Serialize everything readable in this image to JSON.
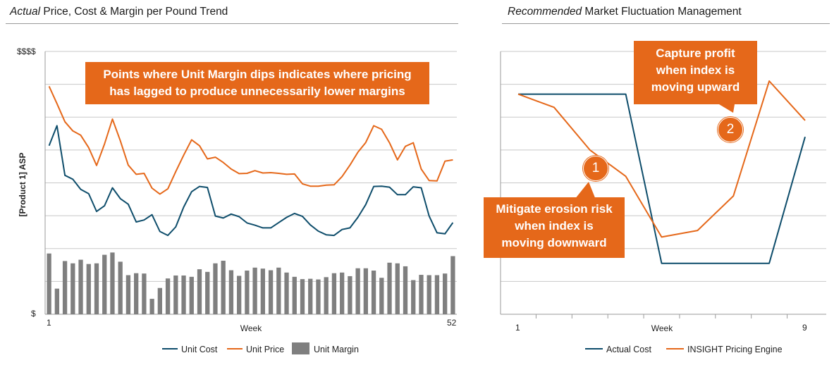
{
  "left_title": {
    "italic": "Actual",
    "rest": " Price, Cost & Margin per Pound Trend"
  },
  "right_title": {
    "italic": "Recommended",
    "rest": " Market Fluctuation Management"
  },
  "left_callout": {
    "line1": "Points where Unit Margin dips indicates where pricing",
    "line2": "has lagged to produce unnecessarily lower margins"
  },
  "right_callout_up": {
    "line1": "Capture profit",
    "line2": "when index is",
    "line3": "moving upward",
    "badge": "2"
  },
  "right_callout_down": {
    "line1": "Mitigate erosion risk",
    "line2": "when index is",
    "line3": "moving downward",
    "badge": "1"
  },
  "colors": {
    "cost": "#0e4d6b",
    "price": "#e5681a",
    "margin": "#7f7f7f",
    "grid": "#c8c8c8"
  },
  "chart_data": [
    {
      "type": "line",
      "title": "Actual Price, Cost & Margin per Pound Trend",
      "xlabel": "Week",
      "ylabel": "[Product 1] ASP",
      "x_tick_labels": [
        "1",
        "52"
      ],
      "y_tick_labels": [
        "$",
        "$$$$"
      ],
      "grid": true,
      "legend_position": "bottom",
      "series": [
        {
          "name": "Unit Cost",
          "kind": "line",
          "color": "#0e4d6b",
          "values": [
            5.13,
            5.74,
            4.23,
            4.11,
            3.8,
            3.67,
            3.13,
            3.3,
            3.85,
            3.52,
            3.35,
            2.81,
            2.87,
            3.03,
            2.52,
            2.4,
            2.66,
            3.26,
            3.73,
            3.89,
            3.86,
            2.99,
            2.93,
            3.05,
            2.97,
            2.78,
            2.71,
            2.63,
            2.63,
            2.79,
            2.95,
            3.07,
            2.98,
            2.72,
            2.53,
            2.42,
            2.4,
            2.58,
            2.63,
            2.95,
            3.34,
            3.89,
            3.9,
            3.87,
            3.64,
            3.64,
            3.88,
            3.85,
            2.99,
            2.48,
            2.45,
            2.79
          ]
        },
        {
          "name": "Unit Price",
          "kind": "line",
          "color": "#e5681a",
          "values": [
            6.94,
            6.41,
            5.86,
            5.58,
            5.45,
            5.07,
            4.53,
            5.18,
            5.94,
            5.28,
            4.54,
            4.26,
            4.29,
            3.84,
            3.66,
            3.82,
            4.34,
            4.84,
            5.31,
            5.13,
            4.73,
            4.78,
            4.62,
            4.42,
            4.28,
            4.29,
            4.37,
            4.3,
            4.31,
            4.29,
            4.26,
            4.27,
            3.97,
            3.9,
            3.9,
            3.93,
            3.94,
            4.19,
            4.54,
            4.93,
            5.23,
            5.74,
            5.63,
            5.22,
            4.7,
            5.11,
            5.22,
            4.42,
            4.07,
            4.06,
            4.66,
            4.7
          ]
        },
        {
          "name": "Unit Margin",
          "kind": "bar",
          "color": "#7f7f7f",
          "values": [
            1.85,
            0.78,
            1.62,
            1.55,
            1.66,
            1.53,
            1.55,
            1.81,
            1.88,
            1.6,
            1.19,
            1.25,
            1.24,
            0.47,
            0.8,
            1.09,
            1.18,
            1.18,
            1.14,
            1.37,
            1.29,
            1.55,
            1.63,
            1.34,
            1.17,
            1.33,
            1.42,
            1.39,
            1.34,
            1.42,
            1.27,
            1.14,
            1.07,
            1.08,
            1.06,
            1.13,
            1.25,
            1.27,
            1.16,
            1.4,
            1.4,
            1.33,
            1.11,
            1.57,
            1.55,
            1.46,
            1.04,
            1.2,
            1.19,
            1.19,
            1.24,
            1.77
          ]
        }
      ],
      "ylim": [
        0,
        8
      ]
    },
    {
      "type": "line",
      "title": "Recommended Market Fluctuation Management",
      "xlabel": "Week",
      "x_tick_labels": [
        "1",
        "9"
      ],
      "grid": true,
      "legend_position": "bottom",
      "x": [
        1,
        2,
        3,
        4,
        5,
        6,
        7,
        8,
        9
      ],
      "series": [
        {
          "name": "Actual Cost",
          "color": "#0e4d6b",
          "points": [
            [
              1,
              6.7
            ],
            [
              2,
              6.7
            ],
            [
              3,
              6.7
            ],
            [
              4,
              6.7
            ],
            [
              5,
              1.55
            ],
            [
              6,
              1.55
            ],
            [
              7,
              1.55
            ],
            [
              8,
              1.55
            ],
            [
              9,
              5.4
            ]
          ]
        },
        {
          "name": "INSIGHT Pricing Engine",
          "color": "#e5681a",
          "points": [
            [
              1,
              6.7
            ],
            [
              2,
              6.3
            ],
            [
              3,
              5.0
            ],
            [
              4,
              4.2
            ],
            [
              5,
              2.35
            ],
            [
              6,
              2.55
            ],
            [
              7,
              3.6
            ],
            [
              8,
              7.1
            ],
            [
              9,
              5.9
            ]
          ]
        }
      ],
      "ylim": [
        0,
        8
      ]
    }
  ]
}
